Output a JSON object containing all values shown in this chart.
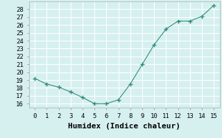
{
  "x": [
    0,
    1,
    2,
    3,
    4,
    5,
    6,
    7,
    8,
    9,
    10,
    11,
    12,
    13,
    14,
    15
  ],
  "y": [
    19.2,
    18.5,
    18.1,
    17.5,
    16.8,
    16.0,
    16.0,
    16.5,
    18.5,
    21.0,
    23.5,
    25.5,
    26.5,
    26.5,
    27.1,
    28.5
  ],
  "line_color": "#2e8b7a",
  "marker": "+",
  "marker_color": "#2e8b7a",
  "bg_color": "#d6f0f0",
  "grid_color": "#ffffff",
  "xlabel": "Humidex (Indice chaleur)",
  "xlabel_fontsize": 8,
  "tick_fontsize": 6.5,
  "ylim": [
    15.5,
    29
  ],
  "xlim": [
    -0.5,
    15.5
  ],
  "yticks": [
    16,
    17,
    18,
    19,
    20,
    21,
    22,
    23,
    24,
    25,
    26,
    27,
    28
  ],
  "xticks": [
    0,
    1,
    2,
    3,
    4,
    5,
    6,
    7,
    8,
    9,
    10,
    11,
    12,
    13,
    14,
    15
  ]
}
